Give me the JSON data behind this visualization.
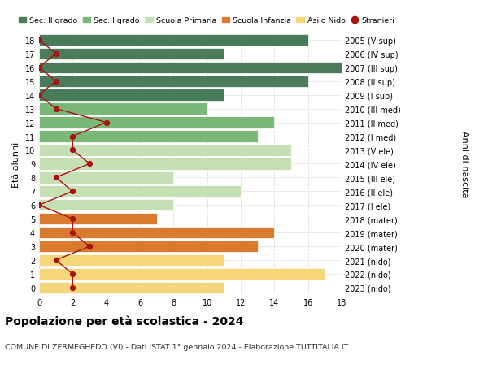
{
  "ages": [
    18,
    17,
    16,
    15,
    14,
    13,
    12,
    11,
    10,
    9,
    8,
    7,
    6,
    5,
    4,
    3,
    2,
    1,
    0
  ],
  "bar_values": [
    16,
    11,
    18,
    16,
    11,
    10,
    14,
    13,
    15,
    15,
    8,
    12,
    8,
    7,
    14,
    13,
    11,
    17,
    11
  ],
  "bar_colors": [
    "#4a7c59",
    "#4a7c59",
    "#4a7c59",
    "#4a7c59",
    "#4a7c59",
    "#7ab87a",
    "#7ab87a",
    "#7ab87a",
    "#c5e0b4",
    "#c5e0b4",
    "#c5e0b4",
    "#c5e0b4",
    "#c5e0b4",
    "#d97b2e",
    "#d97b2e",
    "#d97b2e",
    "#f5d77a",
    "#f5d77a",
    "#f5d77a"
  ],
  "stranieri_values": [
    0,
    1,
    0,
    1,
    0,
    1,
    4,
    2,
    2,
    3,
    1,
    2,
    0,
    2,
    2,
    3,
    1,
    2,
    2
  ],
  "right_labels": [
    "2005 (V sup)",
    "2006 (IV sup)",
    "2007 (III sup)",
    "2008 (II sup)",
    "2009 (I sup)",
    "2010 (III med)",
    "2011 (II med)",
    "2012 (I med)",
    "2013 (V ele)",
    "2014 (IV ele)",
    "2015 (III ele)",
    "2016 (II ele)",
    "2017 (I ele)",
    "2018 (mater)",
    "2019 (mater)",
    "2020 (mater)",
    "2021 (nido)",
    "2022 (nido)",
    "2023 (nido)"
  ],
  "legend_labels": [
    "Sec. II grado",
    "Sec. I grado",
    "Scuola Primaria",
    "Scuola Infanzia",
    "Asilo Nido",
    "Stranieri"
  ],
  "legend_colors": [
    "#4a7c59",
    "#7ab87a",
    "#c5e0b4",
    "#d97b2e",
    "#f5d77a",
    "#cc0000"
  ],
  "ylabel_left": "Età alunni",
  "ylabel_right": "Anni di nascita",
  "title": "Popolazione per età scolastica - 2024",
  "subtitle": "COMUNE DI ZERMEGHEDO (VI) - Dati ISTAT 1° gennaio 2024 - Elaborazione TUTTITALIA.IT",
  "xlim": [
    0,
    18
  ],
  "ylim": [
    -0.5,
    18.5
  ],
  "xticks": [
    0,
    2,
    4,
    6,
    8,
    10,
    12,
    14,
    16,
    18
  ],
  "background_color": "#ffffff",
  "grid_color": "#dddddd",
  "stranieri_color": "#aa1111",
  "bar_height": 0.85
}
